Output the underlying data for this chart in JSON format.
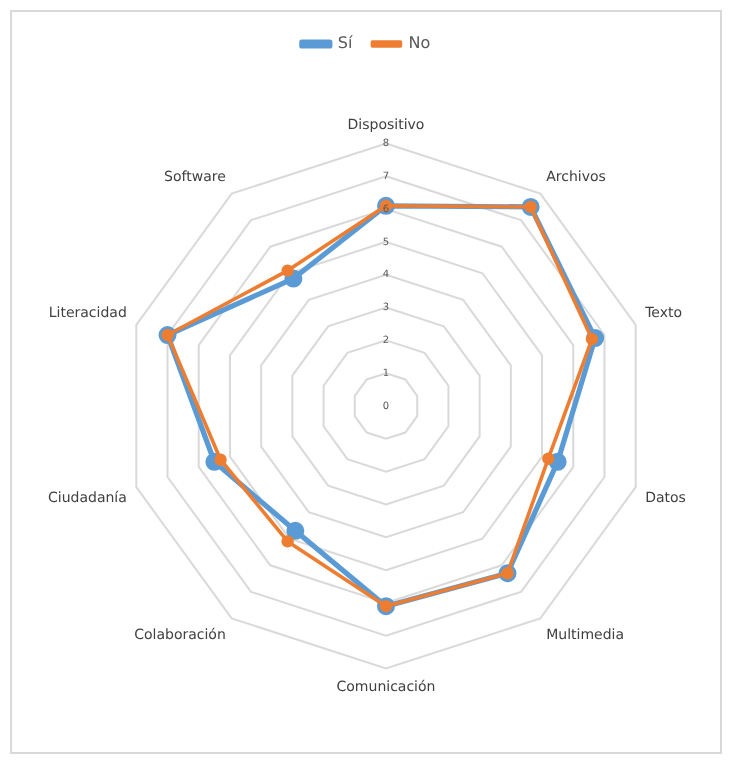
{
  "chart_data": {
    "type": "radar",
    "categories": [
      "Dispositivo",
      "Archivos",
      "Texto",
      "Datos",
      "Multimedia",
      "Comunicación",
      "Colaboración",
      "Ciudadanía",
      "Literacidad",
      "Software"
    ],
    "series": [
      {
        "name": "Sí",
        "color": "#5b9bd5",
        "values": [
          6.1,
          7.5,
          6.7,
          5.5,
          6.3,
          6.1,
          4.7,
          5.5,
          7.0,
          4.8
        ]
      },
      {
        "name": "No",
        "color": "#ed7d31",
        "values": [
          6.1,
          7.5,
          6.6,
          5.2,
          6.3,
          6.1,
          5.1,
          5.3,
          7.0,
          5.1
        ]
      }
    ],
    "ylim": [
      0,
      8
    ],
    "yticks": [
      0,
      1,
      2,
      3,
      4,
      5,
      6,
      7,
      8
    ],
    "grid": true,
    "legend": "top",
    "marker": "circle"
  }
}
